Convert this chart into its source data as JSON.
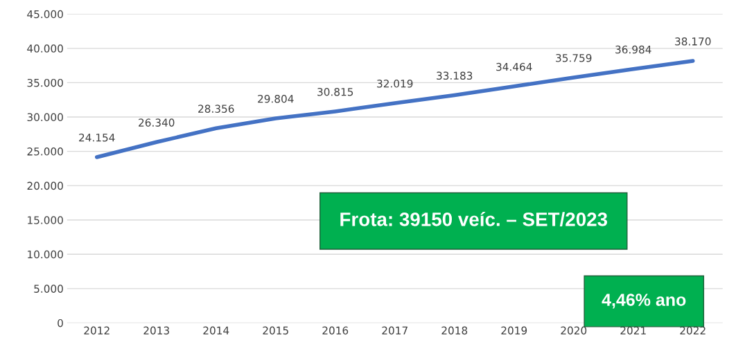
{
  "chart_data": {
    "type": "line",
    "categories": [
      "2012",
      "2013",
      "2014",
      "2015",
      "2016",
      "2017",
      "2018",
      "2019",
      "2020",
      "2021",
      "2022"
    ],
    "series": [
      {
        "color": "#4472c4",
        "values": [
          24154,
          26340,
          28356,
          29804,
          30815,
          32019,
          33183,
          34464,
          35759,
          36984,
          38170
        ],
        "value_labels": [
          "24.154",
          "26.340",
          "28.356",
          "29.804",
          "30.815",
          "32.019",
          "33.183",
          "34.464",
          "35.759",
          "36.984",
          "38.170"
        ]
      }
    ],
    "ylim": [
      0,
      45000
    ],
    "yticks": [
      {
        "value": 0,
        "label": "0"
      },
      {
        "value": 5000,
        "label": "5.000"
      },
      {
        "value": 10000,
        "label": "10.000"
      },
      {
        "value": 15000,
        "label": "15.000"
      },
      {
        "value": 20000,
        "label": "20.000"
      },
      {
        "value": 25000,
        "label": "25.000"
      },
      {
        "value": 30000,
        "label": "30.000"
      },
      {
        "value": 35000,
        "label": "35.000"
      },
      {
        "value": 40000,
        "label": "40.000"
      },
      {
        "value": 45000,
        "label": "45.000"
      }
    ],
    "grid": "y",
    "marker": "none",
    "annotations": [
      "Frota: 39150 veíc. – SET/2023",
      "4,46% ano"
    ]
  }
}
